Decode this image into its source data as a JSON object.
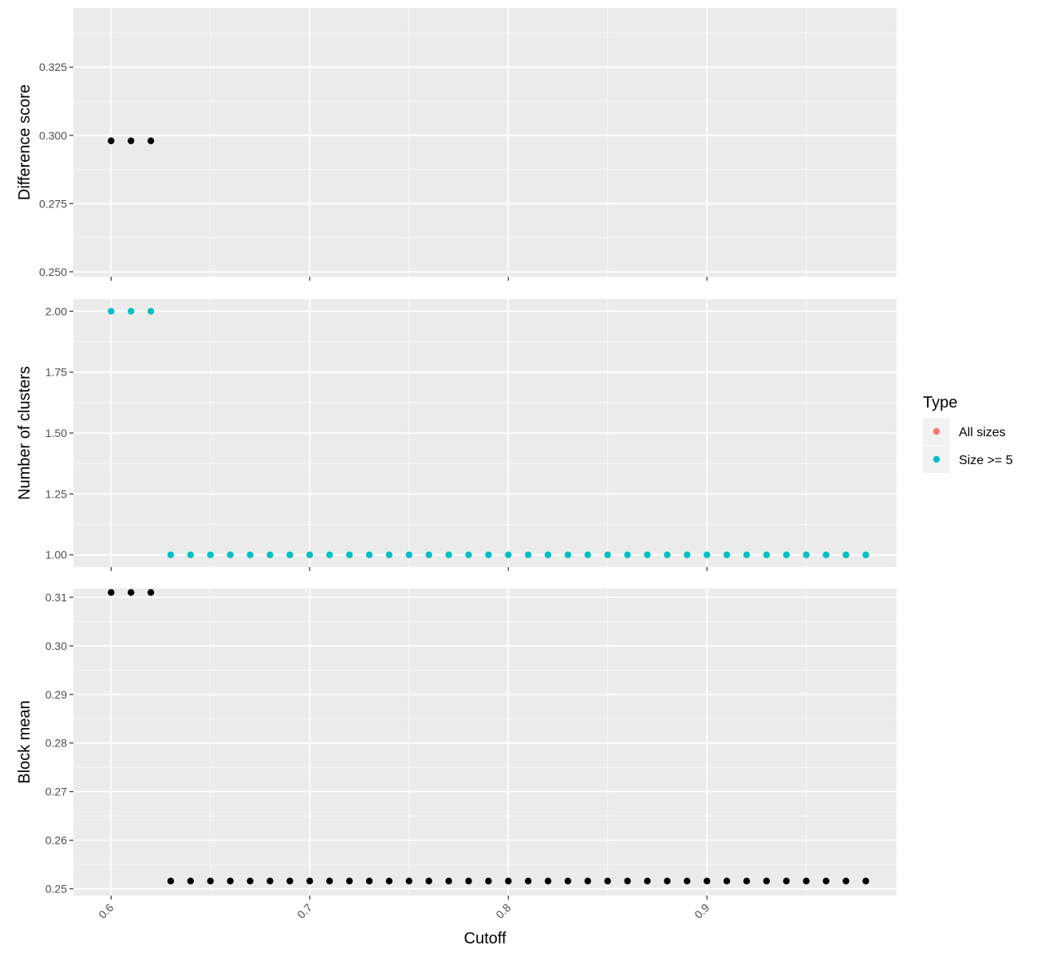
{
  "chart_data": {
    "type": "scatter",
    "xlabel": "Cutoff",
    "xlim": [
      0.581,
      0.9955
    ],
    "xticks": [
      "0.6",
      "0.7",
      "0.8",
      "0.9"
    ],
    "xtick_values": [
      0.6,
      0.7,
      0.8,
      0.9
    ],
    "grid": true,
    "legend": {
      "title": "Type",
      "placement": "right",
      "entries": [
        {
          "label": "All sizes",
          "color": "#F8766D"
        },
        {
          "label": "Size >= 5",
          "color": "#00BFC4"
        }
      ]
    },
    "panels": [
      {
        "ylabel": "Difference score",
        "ylim": [
          0.2482,
          0.3467
        ],
        "yticks": [
          "0.250",
          "0.275",
          "0.300",
          "0.325"
        ],
        "ytick_values": [
          0.25,
          0.275,
          0.3,
          0.325
        ],
        "series": [
          {
            "color": "#000000",
            "x": [
              0.6,
              0.61,
              0.62
            ],
            "y": [
              0.298,
              0.298,
              0.298
            ]
          }
        ]
      },
      {
        "ylabel": "Number of clusters",
        "ylim": [
          0.95,
          2.05
        ],
        "yticks": [
          "1.00",
          "1.25",
          "1.50",
          "1.75",
          "2.00"
        ],
        "ytick_values": [
          1.0,
          1.25,
          1.5,
          1.75,
          2.0
        ],
        "series": [
          {
            "name": "Size >= 5",
            "color": "#00BFC4",
            "x": [
              0.6,
              0.61,
              0.62,
              0.63,
              0.64,
              0.65,
              0.66,
              0.67,
              0.68,
              0.69,
              0.7,
              0.71,
              0.72,
              0.73,
              0.74,
              0.75,
              0.76,
              0.77,
              0.78,
              0.79,
              0.8,
              0.81,
              0.82,
              0.83,
              0.84,
              0.85,
              0.86,
              0.87,
              0.88,
              0.89,
              0.9,
              0.91,
              0.92,
              0.93,
              0.94,
              0.95,
              0.96,
              0.97,
              0.98
            ],
            "y": [
              2,
              2,
              2,
              1,
              1,
              1,
              1,
              1,
              1,
              1,
              1,
              1,
              1,
              1,
              1,
              1,
              1,
              1,
              1,
              1,
              1,
              1,
              1,
              1,
              1,
              1,
              1,
              1,
              1,
              1,
              1,
              1,
              1,
              1,
              1,
              1,
              1,
              1,
              1
            ]
          }
        ]
      },
      {
        "ylabel": "Block mean",
        "ylim": [
          0.2486,
          0.3118
        ],
        "yticks": [
          "0.25",
          "0.26",
          "0.27",
          "0.28",
          "0.29",
          "0.30",
          "0.31"
        ],
        "ytick_values": [
          0.25,
          0.26,
          0.27,
          0.28,
          0.29,
          0.3,
          0.31
        ],
        "series": [
          {
            "color": "#000000",
            "x": [
              0.6,
              0.61,
              0.62,
              0.63,
              0.64,
              0.65,
              0.66,
              0.67,
              0.68,
              0.69,
              0.7,
              0.71,
              0.72,
              0.73,
              0.74,
              0.75,
              0.76,
              0.77,
              0.78,
              0.79,
              0.8,
              0.81,
              0.82,
              0.83,
              0.84,
              0.85,
              0.86,
              0.87,
              0.88,
              0.89,
              0.9,
              0.91,
              0.92,
              0.93,
              0.94,
              0.95,
              0.96,
              0.97,
              0.98
            ],
            "y": [
              0.311,
              0.311,
              0.311,
              0.2516,
              0.2516,
              0.2516,
              0.2516,
              0.2516,
              0.2516,
              0.2516,
              0.2516,
              0.2516,
              0.2516,
              0.2516,
              0.2516,
              0.2516,
              0.2516,
              0.2516,
              0.2516,
              0.2516,
              0.2516,
              0.2516,
              0.2516,
              0.2516,
              0.2516,
              0.2516,
              0.2516,
              0.2516,
              0.2516,
              0.2516,
              0.2516,
              0.2516,
              0.2516,
              0.2516,
              0.2516,
              0.2516,
              0.2516,
              0.2516,
              0.2516
            ]
          }
        ]
      }
    ]
  }
}
